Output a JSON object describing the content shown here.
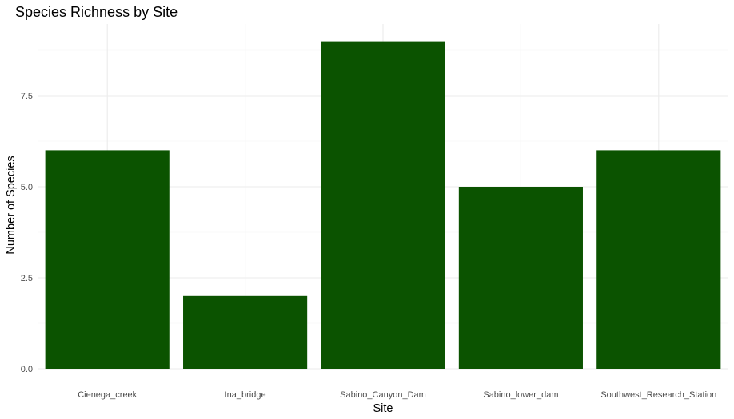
{
  "chart_data": {
    "type": "bar",
    "title": "Species Richness by Site",
    "xlabel": "Site",
    "ylabel": "Number of Species",
    "categories": [
      "Cienega_creek",
      "Ina_bridge",
      "Sabino_Canyon_Dam",
      "Sabino_lower_dam",
      "Southwest_Research_Station"
    ],
    "values": [
      6,
      2,
      9,
      5,
      6
    ],
    "yticks": [
      0,
      2.5,
      5,
      7.5
    ],
    "ytick_labels": [
      "0.0",
      "2.5",
      "5.0",
      "7.5"
    ],
    "ylim": [
      0,
      9.45
    ],
    "bar_color": "#0b5300",
    "grid": true,
    "legend": "none"
  }
}
